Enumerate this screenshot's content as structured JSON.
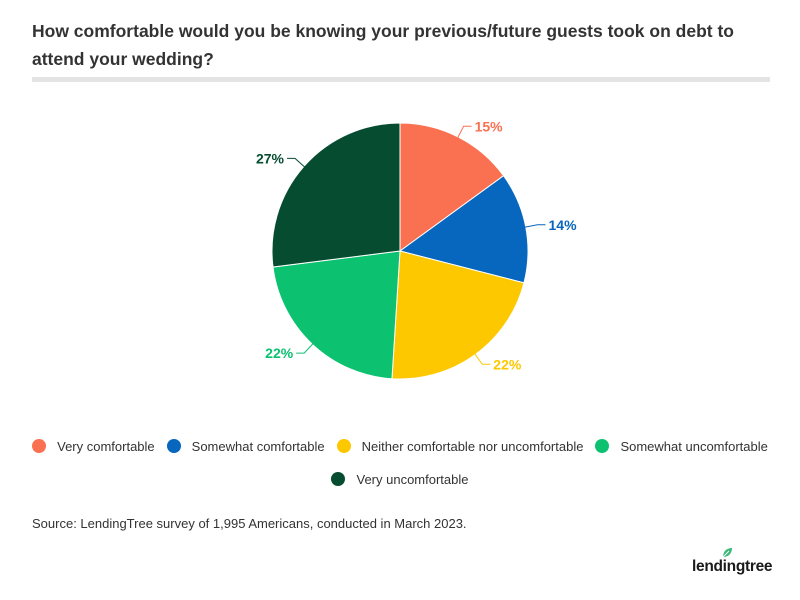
{
  "title": "How comfortable would you be knowing your previous/future guests took on debt to attend your wedding?",
  "source": "Source: LendingTree survey of 1,995 Americans, conducted in March 2023.",
  "logo_text": "lendingtree",
  "chart_data": {
    "type": "pie",
    "title": "How comfortable would you be knowing your previous/future guests took on debt to attend your wedding?",
    "categories": [
      "Very comfortable",
      "Somewhat comfortable",
      "Neither comfortable nor uncomfortable",
      "Somewhat uncomfortable",
      "Very uncomfortable"
    ],
    "values": [
      15,
      14,
      22,
      22,
      27
    ],
    "data_labels": [
      "15%",
      "14%",
      "22%",
      "22%",
      "27%"
    ],
    "colors": [
      "#f97150",
      "#0766bd",
      "#fdc800",
      "#0cc16f",
      "#054c30"
    ],
    "legend_placement": "bottom"
  }
}
